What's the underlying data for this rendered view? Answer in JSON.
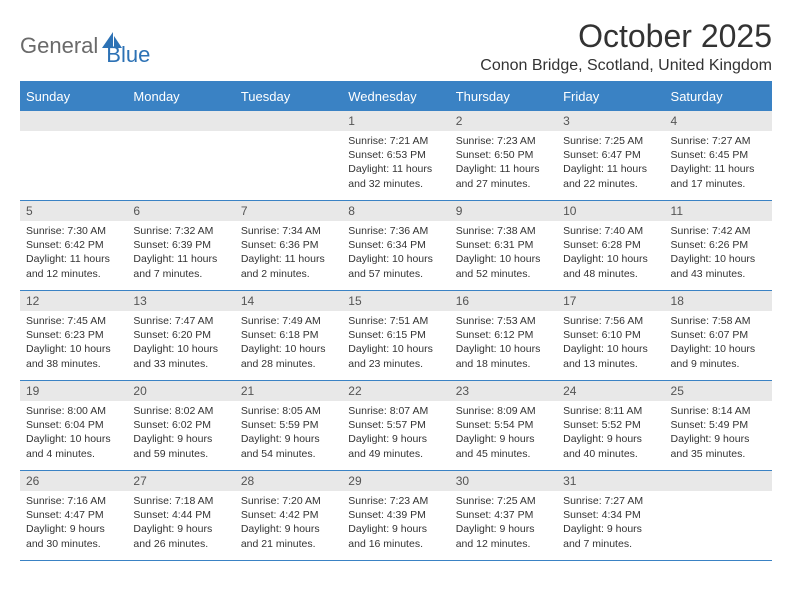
{
  "logo": {
    "general": "General",
    "blue": "Blue"
  },
  "title": "October 2025",
  "location": "Conon Bridge, Scotland, United Kingdom",
  "colors": {
    "header_bg": "#3a82c4",
    "header_text": "#ffffff",
    "daynum_bg": "#e8e8e8",
    "border": "#3a82c4",
    "text": "#333333",
    "logo_gray": "#6a6a6a",
    "logo_blue": "#2d72b5"
  },
  "weekdays": [
    "Sunday",
    "Monday",
    "Tuesday",
    "Wednesday",
    "Thursday",
    "Friday",
    "Saturday"
  ],
  "weeks": [
    [
      {
        "n": "",
        "sr": "",
        "ss": "",
        "dl": ""
      },
      {
        "n": "",
        "sr": "",
        "ss": "",
        "dl": ""
      },
      {
        "n": "",
        "sr": "",
        "ss": "",
        "dl": ""
      },
      {
        "n": "1",
        "sr": "Sunrise: 7:21 AM",
        "ss": "Sunset: 6:53 PM",
        "dl": "Daylight: 11 hours and 32 minutes."
      },
      {
        "n": "2",
        "sr": "Sunrise: 7:23 AM",
        "ss": "Sunset: 6:50 PM",
        "dl": "Daylight: 11 hours and 27 minutes."
      },
      {
        "n": "3",
        "sr": "Sunrise: 7:25 AM",
        "ss": "Sunset: 6:47 PM",
        "dl": "Daylight: 11 hours and 22 minutes."
      },
      {
        "n": "4",
        "sr": "Sunrise: 7:27 AM",
        "ss": "Sunset: 6:45 PM",
        "dl": "Daylight: 11 hours and 17 minutes."
      }
    ],
    [
      {
        "n": "5",
        "sr": "Sunrise: 7:30 AM",
        "ss": "Sunset: 6:42 PM",
        "dl": "Daylight: 11 hours and 12 minutes."
      },
      {
        "n": "6",
        "sr": "Sunrise: 7:32 AM",
        "ss": "Sunset: 6:39 PM",
        "dl": "Daylight: 11 hours and 7 minutes."
      },
      {
        "n": "7",
        "sr": "Sunrise: 7:34 AM",
        "ss": "Sunset: 6:36 PM",
        "dl": "Daylight: 11 hours and 2 minutes."
      },
      {
        "n": "8",
        "sr": "Sunrise: 7:36 AM",
        "ss": "Sunset: 6:34 PM",
        "dl": "Daylight: 10 hours and 57 minutes."
      },
      {
        "n": "9",
        "sr": "Sunrise: 7:38 AM",
        "ss": "Sunset: 6:31 PM",
        "dl": "Daylight: 10 hours and 52 minutes."
      },
      {
        "n": "10",
        "sr": "Sunrise: 7:40 AM",
        "ss": "Sunset: 6:28 PM",
        "dl": "Daylight: 10 hours and 48 minutes."
      },
      {
        "n": "11",
        "sr": "Sunrise: 7:42 AM",
        "ss": "Sunset: 6:26 PM",
        "dl": "Daylight: 10 hours and 43 minutes."
      }
    ],
    [
      {
        "n": "12",
        "sr": "Sunrise: 7:45 AM",
        "ss": "Sunset: 6:23 PM",
        "dl": "Daylight: 10 hours and 38 minutes."
      },
      {
        "n": "13",
        "sr": "Sunrise: 7:47 AM",
        "ss": "Sunset: 6:20 PM",
        "dl": "Daylight: 10 hours and 33 minutes."
      },
      {
        "n": "14",
        "sr": "Sunrise: 7:49 AM",
        "ss": "Sunset: 6:18 PM",
        "dl": "Daylight: 10 hours and 28 minutes."
      },
      {
        "n": "15",
        "sr": "Sunrise: 7:51 AM",
        "ss": "Sunset: 6:15 PM",
        "dl": "Daylight: 10 hours and 23 minutes."
      },
      {
        "n": "16",
        "sr": "Sunrise: 7:53 AM",
        "ss": "Sunset: 6:12 PM",
        "dl": "Daylight: 10 hours and 18 minutes."
      },
      {
        "n": "17",
        "sr": "Sunrise: 7:56 AM",
        "ss": "Sunset: 6:10 PM",
        "dl": "Daylight: 10 hours and 13 minutes."
      },
      {
        "n": "18",
        "sr": "Sunrise: 7:58 AM",
        "ss": "Sunset: 6:07 PM",
        "dl": "Daylight: 10 hours and 9 minutes."
      }
    ],
    [
      {
        "n": "19",
        "sr": "Sunrise: 8:00 AM",
        "ss": "Sunset: 6:04 PM",
        "dl": "Daylight: 10 hours and 4 minutes."
      },
      {
        "n": "20",
        "sr": "Sunrise: 8:02 AM",
        "ss": "Sunset: 6:02 PM",
        "dl": "Daylight: 9 hours and 59 minutes."
      },
      {
        "n": "21",
        "sr": "Sunrise: 8:05 AM",
        "ss": "Sunset: 5:59 PM",
        "dl": "Daylight: 9 hours and 54 minutes."
      },
      {
        "n": "22",
        "sr": "Sunrise: 8:07 AM",
        "ss": "Sunset: 5:57 PM",
        "dl": "Daylight: 9 hours and 49 minutes."
      },
      {
        "n": "23",
        "sr": "Sunrise: 8:09 AM",
        "ss": "Sunset: 5:54 PM",
        "dl": "Daylight: 9 hours and 45 minutes."
      },
      {
        "n": "24",
        "sr": "Sunrise: 8:11 AM",
        "ss": "Sunset: 5:52 PM",
        "dl": "Daylight: 9 hours and 40 minutes."
      },
      {
        "n": "25",
        "sr": "Sunrise: 8:14 AM",
        "ss": "Sunset: 5:49 PM",
        "dl": "Daylight: 9 hours and 35 minutes."
      }
    ],
    [
      {
        "n": "26",
        "sr": "Sunrise: 7:16 AM",
        "ss": "Sunset: 4:47 PM",
        "dl": "Daylight: 9 hours and 30 minutes."
      },
      {
        "n": "27",
        "sr": "Sunrise: 7:18 AM",
        "ss": "Sunset: 4:44 PM",
        "dl": "Daylight: 9 hours and 26 minutes."
      },
      {
        "n": "28",
        "sr": "Sunrise: 7:20 AM",
        "ss": "Sunset: 4:42 PM",
        "dl": "Daylight: 9 hours and 21 minutes."
      },
      {
        "n": "29",
        "sr": "Sunrise: 7:23 AM",
        "ss": "Sunset: 4:39 PM",
        "dl": "Daylight: 9 hours and 16 minutes."
      },
      {
        "n": "30",
        "sr": "Sunrise: 7:25 AM",
        "ss": "Sunset: 4:37 PM",
        "dl": "Daylight: 9 hours and 12 minutes."
      },
      {
        "n": "31",
        "sr": "Sunrise: 7:27 AM",
        "ss": "Sunset: 4:34 PM",
        "dl": "Daylight: 9 hours and 7 minutes."
      },
      {
        "n": "",
        "sr": "",
        "ss": "",
        "dl": ""
      }
    ]
  ]
}
